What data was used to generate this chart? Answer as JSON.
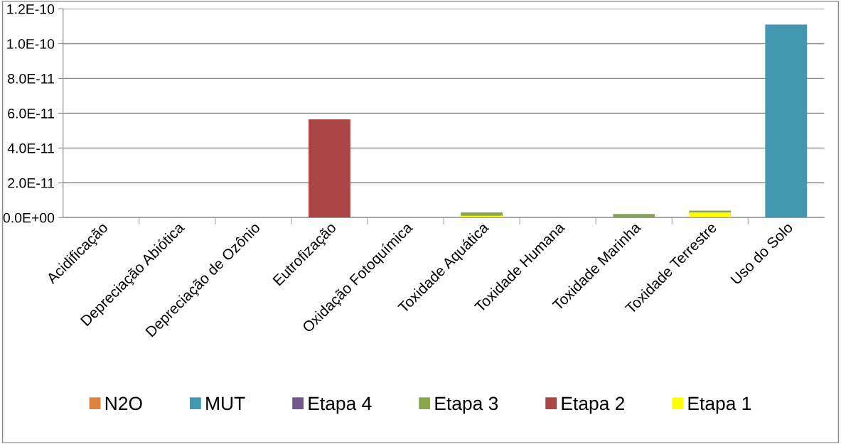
{
  "chart_data": {
    "type": "bar",
    "stacked": true,
    "grid": "y",
    "legend": "bottom",
    "categories": [
      "Acidificação",
      "Depreciação Abiótica",
      "Depreciação de Ozônio",
      "Eutrofização",
      "Oxidação Fotoquímica",
      "Toxidade Aquática",
      "Toxidade Humana",
      "Toxidade Marinha",
      "Toxidade Terrestre",
      "Uso do Solo"
    ],
    "series": [
      {
        "name": "Etapa 1",
        "color": "#ffff00",
        "values": [
          null,
          null,
          null,
          null,
          null,
          1e-12,
          null,
          null,
          3e-12,
          null
        ]
      },
      {
        "name": "Etapa 2",
        "color": "#aa4643",
        "values": [
          null,
          null,
          null,
          5.65e-11,
          null,
          null,
          null,
          null,
          null,
          null
        ]
      },
      {
        "name": "Etapa 3",
        "color": "#89a54e",
        "values": [
          null,
          null,
          null,
          null,
          null,
          2e-12,
          null,
          2e-12,
          1e-12,
          null
        ]
      },
      {
        "name": "Etapa 4",
        "color": "#71588f",
        "values": [
          null,
          null,
          null,
          null,
          null,
          null,
          null,
          null,
          null,
          null
        ]
      },
      {
        "name": "MUT",
        "color": "#4198af",
        "values": [
          null,
          null,
          null,
          null,
          null,
          null,
          null,
          null,
          null,
          1.11e-10
        ]
      },
      {
        "name": "N2O",
        "color": "#db843d",
        "values": [
          null,
          null,
          null,
          null,
          null,
          null,
          null,
          null,
          null,
          null
        ]
      }
    ],
    "ylim": [
      0,
      1.2e-10
    ],
    "yticks": [
      {
        "value": 0,
        "label": "0.0E+00"
      },
      {
        "value": 2e-11,
        "label": "2.0E-11"
      },
      {
        "value": 4e-11,
        "label": "4.0E-11"
      },
      {
        "value": 6e-11,
        "label": "6.0E-11"
      },
      {
        "value": 8e-11,
        "label": "8.0E-11"
      },
      {
        "value": 1e-10,
        "label": "1.0E-10"
      },
      {
        "value": 1.2e-10,
        "label": "1.2E-10"
      }
    ]
  }
}
